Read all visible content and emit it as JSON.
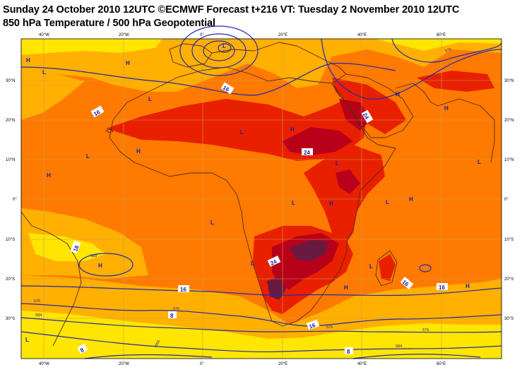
{
  "title": {
    "line1": "Sunday 24 October 2010 12UTC ©ECMWF Forecast t+216 VT: Tuesday 2 November 2010 12UTC",
    "line2": "850 hPa Temperature / 500 hPa Geopotential"
  },
  "axes": {
    "longitude_ticks": [
      "40°W",
      "20°W",
      "0°",
      "20°E",
      "40°E",
      "60°E"
    ],
    "latitude_ticks": [
      "30°N",
      "20°N",
      "10°N",
      "0°",
      "10°S",
      "20°S",
      "30°S"
    ]
  },
  "contour_labels": {
    "temperature": [
      "16",
      "16",
      "24",
      "24",
      "16",
      "24",
      "16",
      "8",
      "16",
      "8",
      "16",
      "16",
      "8"
    ],
    "geopotential": [
      "576",
      "588",
      "576",
      "584",
      "576",
      "584",
      "576",
      "576",
      "584"
    ]
  },
  "pressure_centers": [
    {
      "type": "H"
    },
    {
      "type": "H"
    },
    {
      "type": "L"
    },
    {
      "type": "L"
    },
    {
      "type": "L"
    },
    {
      "type": "L"
    },
    {
      "type": "H"
    },
    {
      "type": "H"
    },
    {
      "type": "H"
    },
    {
      "type": "L"
    },
    {
      "type": "L"
    },
    {
      "type": "L"
    },
    {
      "type": "L"
    },
    {
      "type": "L"
    },
    {
      "type": "H"
    },
    {
      "type": "L"
    },
    {
      "type": "H"
    },
    {
      "type": "L"
    },
    {
      "type": "H"
    },
    {
      "type": "H"
    },
    {
      "type": "H"
    },
    {
      "type": "L"
    },
    {
      "type": "L"
    },
    {
      "type": "H"
    },
    {
      "type": "H"
    }
  ],
  "colors": {
    "yellow": "#ffe600",
    "orange_light": "#ffb000",
    "orange": "#ff7a00",
    "red": "#e82000",
    "dark_red": "#b8001a",
    "purple": "#6a1a40",
    "contour": "#2828a8",
    "coast": "#5a2a10",
    "grid": "#c8a050"
  }
}
